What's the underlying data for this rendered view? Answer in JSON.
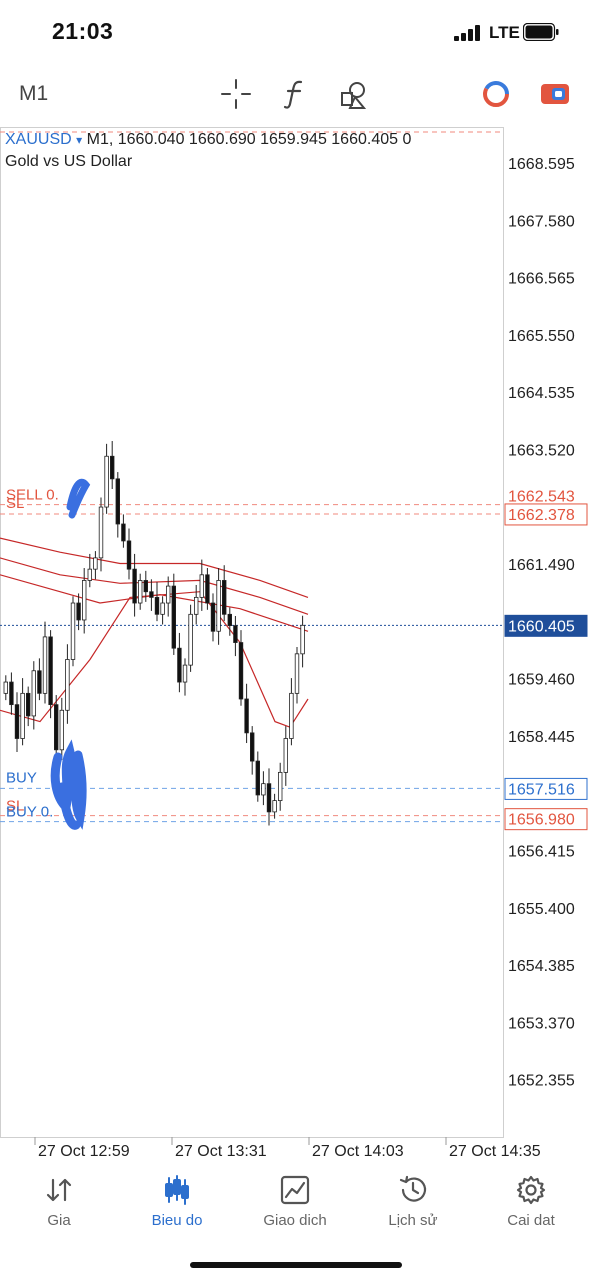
{
  "status_bar": {
    "time": "21:03",
    "network": "LTE"
  },
  "toolbar": {
    "timeframe": "M1",
    "icons": [
      "crosshair-icon",
      "function-icon",
      "objects-icon",
      "trade-signal-icon",
      "one-click-trading-icon"
    ]
  },
  "chart": {
    "symbol": "XAUUSD",
    "dropdown_glyph": "▾",
    "ohlc_line": "M1, 1660.040 1660.690 1659.945 1660.405 0",
    "description": "Gold vs US Dollar",
    "price_axis": [
      "1668.595",
      "1667.580",
      "1666.565",
      "1665.550",
      "1664.535",
      "1663.520",
      "1662.378",
      "1661.490",
      "1660.405",
      "1659.460",
      "1658.445",
      "1657.516",
      "1656.980",
      "1656.415",
      "1655.400",
      "1654.385",
      "1653.370",
      "1652.355"
    ],
    "time_axis": [
      "27 Oct 12:59",
      "27 Oct 13:31",
      "27 Oct 14:03",
      "27 Oct 14:35"
    ],
    "current_price": "1660.405",
    "order_lines": {
      "sell_label": "SELL 0.",
      "sl_top_label": "SL",
      "sl_top_price": "1662.378",
      "sell_price_partial": "1662.543",
      "buy_label": "BUY",
      "buy_price": "1657.516",
      "sl_bottom_label": "SL",
      "buy2_label": "BUY 0.",
      "sl_bottom_price": "1656.980"
    },
    "colors": {
      "sell_line": "#f08a7e",
      "sell_text": "#e2553f",
      "buy_line": "#6fa2e6",
      "buy_text": "#2c6fcd",
      "current_line": "#1f4e9a",
      "indicator": "#c62828",
      "highlight": "#3a6fe0"
    }
  },
  "tabbar": {
    "tabs": [
      {
        "label": "Gia",
        "icon": "quotes-icon",
        "active": false
      },
      {
        "label": "Bieu do",
        "icon": "chart-icon",
        "active": true
      },
      {
        "label": "Giao dich",
        "icon": "trade-icon",
        "active": false
      },
      {
        "label": "Lịch sử",
        "icon": "history-icon",
        "active": false
      },
      {
        "label": "Cai dat",
        "icon": "settings-icon",
        "active": false
      }
    ]
  }
}
